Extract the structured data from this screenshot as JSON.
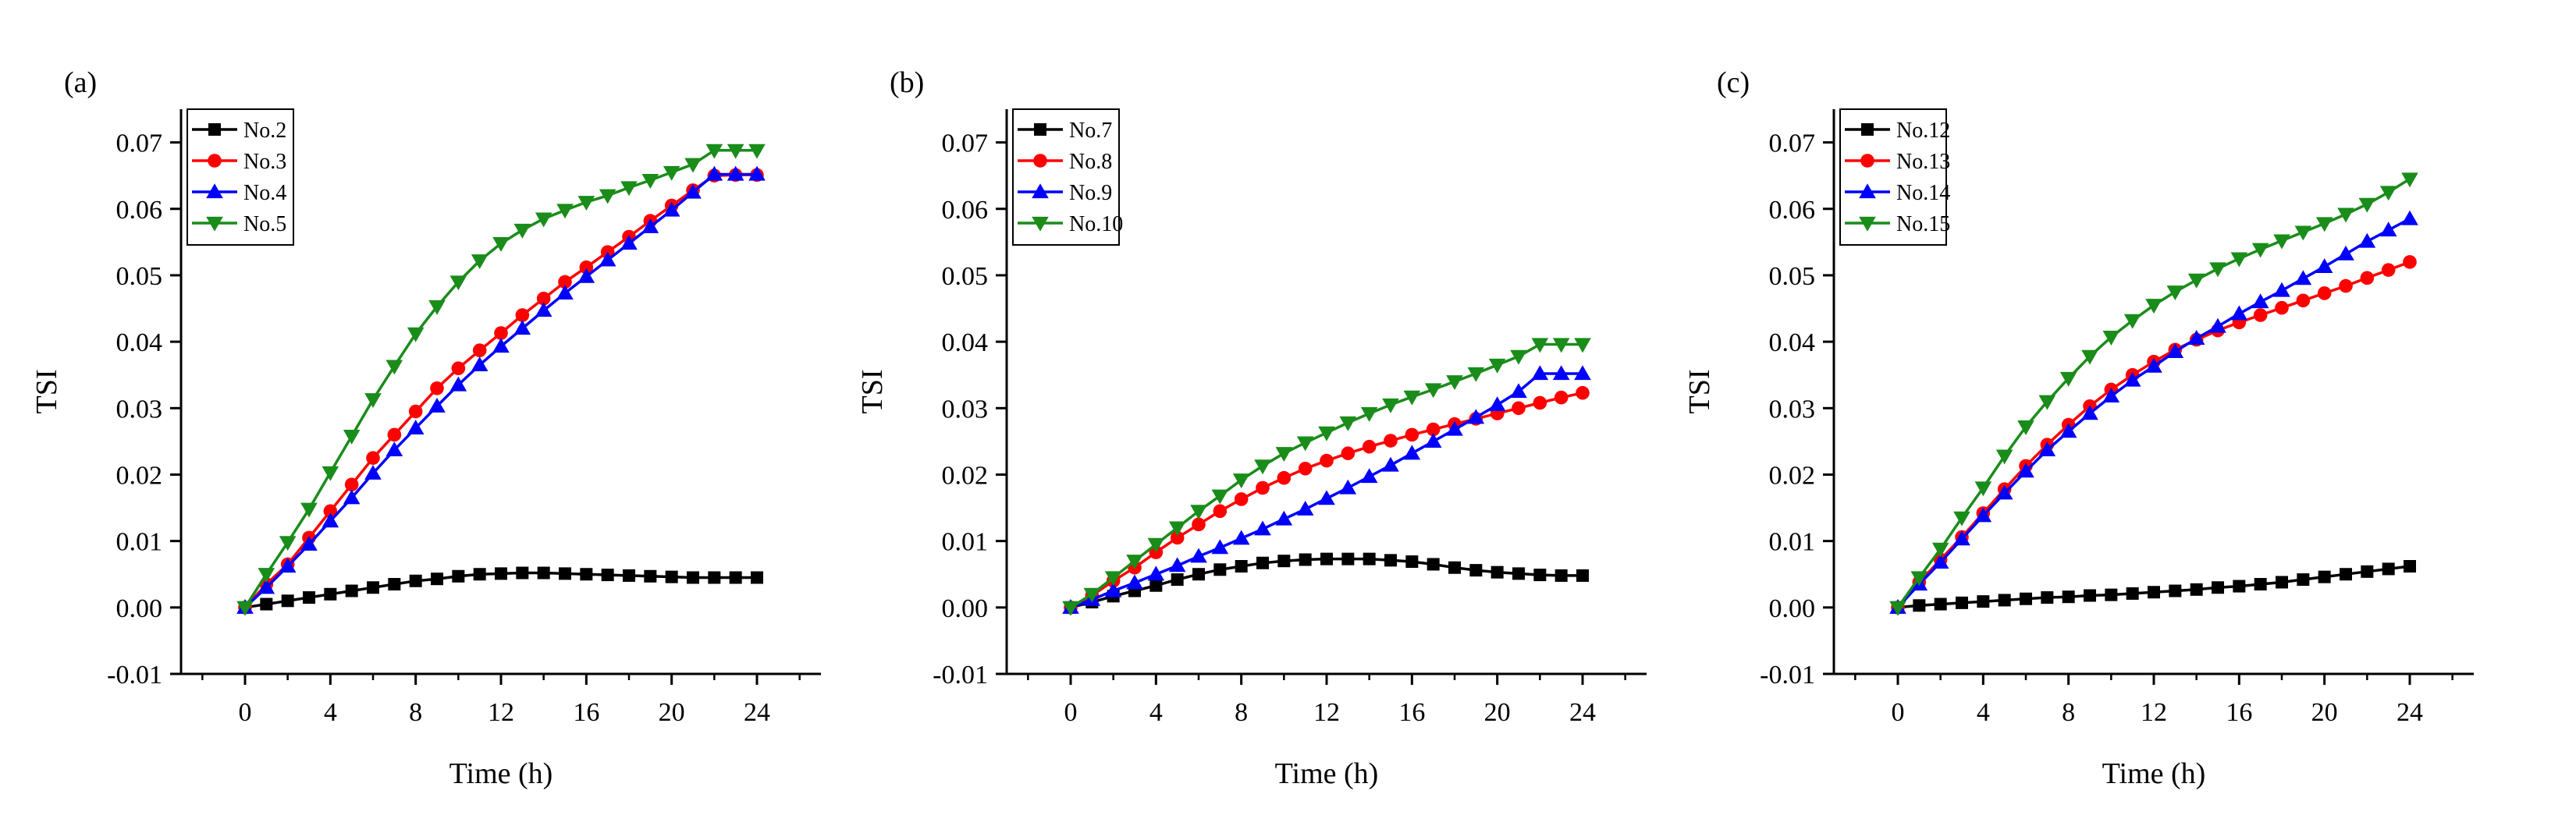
{
  "chart_data": [
    {
      "type": "line",
      "panel_label": "(a)",
      "xlabel": "Time (h)",
      "ylabel": "TSI",
      "xlim": [
        -3,
        27
      ],
      "ylim": [
        -0.01,
        0.075
      ],
      "xticks": [
        0,
        4,
        8,
        12,
        16,
        20,
        24
      ],
      "yticks": [
        -0.01,
        0.0,
        0.01,
        0.02,
        0.03,
        0.04,
        0.05,
        0.06,
        0.07
      ],
      "xtick_labels": [
        "0",
        "4",
        "8",
        "12",
        "16",
        "20",
        "24"
      ],
      "ytick_labels": [
        "-0.01",
        "0.00",
        "0.01",
        "0.02",
        "0.03",
        "0.04",
        "0.05",
        "0.06",
        "0.07"
      ],
      "legend_position": "top-left",
      "x": [
        0,
        1,
        2,
        3,
        4,
        5,
        6,
        7,
        8,
        9,
        10,
        11,
        12,
        13,
        14,
        15,
        16,
        17,
        18,
        19,
        20,
        21,
        22,
        23,
        24
      ],
      "series": [
        {
          "name": "No.2",
          "color": "#000000",
          "marker": "square",
          "values": [
            0.0,
            0.0005,
            0.001,
            0.0015,
            0.002,
            0.0025,
            0.003,
            0.0035,
            0.004,
            0.0043,
            0.0047,
            0.005,
            0.0051,
            0.0052,
            0.0052,
            0.0051,
            0.005,
            0.0049,
            0.0048,
            0.0047,
            0.0046,
            0.0045,
            0.0045,
            0.0045,
            0.0045
          ]
        },
        {
          "name": "No.3",
          "color": "#ff0000",
          "marker": "circle",
          "values": [
            0.0,
            0.0035,
            0.0065,
            0.0105,
            0.0145,
            0.0185,
            0.0225,
            0.026,
            0.0295,
            0.033,
            0.036,
            0.0387,
            0.0413,
            0.044,
            0.0465,
            0.049,
            0.0512,
            0.0535,
            0.0558,
            0.0582,
            0.0605,
            0.0628,
            0.065,
            0.0651,
            0.0651
          ]
        },
        {
          "name": "No.4",
          "color": "#0000ff",
          "marker": "triangle-up",
          "values": [
            0.0,
            0.003,
            0.0062,
            0.0095,
            0.013,
            0.0165,
            0.0202,
            0.0237,
            0.027,
            0.0303,
            0.0335,
            0.0365,
            0.0393,
            0.042,
            0.0447,
            0.0473,
            0.0498,
            0.0523,
            0.0548,
            0.0573,
            0.0598,
            0.0625,
            0.0652,
            0.0652,
            0.0652
          ]
        },
        {
          "name": "No.5",
          "color": "#1a8c1a",
          "marker": "triangle-down",
          "values": [
            0.0,
            0.005,
            0.0098,
            0.0148,
            0.0203,
            0.0258,
            0.0313,
            0.0363,
            0.0412,
            0.0453,
            0.049,
            0.0522,
            0.0548,
            0.0568,
            0.0585,
            0.0598,
            0.061,
            0.062,
            0.0632,
            0.0643,
            0.0655,
            0.0667,
            0.0688,
            0.0688,
            0.0688
          ]
        }
      ]
    },
    {
      "type": "line",
      "panel_label": "(b)",
      "xlabel": "Time (h)",
      "ylabel": "TSI",
      "xlim": [
        -3,
        27
      ],
      "ylim": [
        -0.01,
        0.075
      ],
      "xticks": [
        0,
        4,
        8,
        12,
        16,
        20,
        24
      ],
      "yticks": [
        -0.01,
        0.0,
        0.01,
        0.02,
        0.03,
        0.04,
        0.05,
        0.06,
        0.07
      ],
      "xtick_labels": [
        "0",
        "4",
        "8",
        "12",
        "16",
        "20",
        "24"
      ],
      "ytick_labels": [
        "-0.01",
        "0.00",
        "0.01",
        "0.02",
        "0.03",
        "0.04",
        "0.05",
        "0.06",
        "0.07"
      ],
      "legend_position": "top-left",
      "x": [
        0,
        1,
        2,
        3,
        4,
        5,
        6,
        7,
        8,
        9,
        10,
        11,
        12,
        13,
        14,
        15,
        16,
        17,
        18,
        19,
        20,
        21,
        22,
        23,
        24
      ],
      "series": [
        {
          "name": "No.7",
          "color": "#000000",
          "marker": "square",
          "values": [
            0.0,
            0.0008,
            0.0017,
            0.0025,
            0.0033,
            0.0042,
            0.005,
            0.0057,
            0.0062,
            0.0067,
            0.007,
            0.0072,
            0.0073,
            0.0073,
            0.0073,
            0.0071,
            0.0069,
            0.0065,
            0.006,
            0.0056,
            0.0053,
            0.0051,
            0.0049,
            0.0048,
            0.0048
          ]
        },
        {
          "name": "No.8",
          "color": "#ff0000",
          "marker": "circle",
          "values": [
            0.0,
            0.0018,
            0.004,
            0.006,
            0.0083,
            0.0105,
            0.0125,
            0.0145,
            0.0163,
            0.018,
            0.0195,
            0.0209,
            0.0221,
            0.0232,
            0.0242,
            0.0251,
            0.026,
            0.0268,
            0.0276,
            0.0284,
            0.0292,
            0.03,
            0.0308,
            0.0316,
            0.0323
          ]
        },
        {
          "name": "No.9",
          "color": "#0000ff",
          "marker": "triangle-up",
          "values": [
            0.0,
            0.0012,
            0.0025,
            0.0037,
            0.005,
            0.0063,
            0.0077,
            0.009,
            0.0104,
            0.0118,
            0.0133,
            0.0148,
            0.0164,
            0.018,
            0.0197,
            0.0214,
            0.0232,
            0.025,
            0.0268,
            0.0286,
            0.0305,
            0.0325,
            0.0352,
            0.0352,
            0.0352
          ]
        },
        {
          "name": "No.10",
          "color": "#1a8c1a",
          "marker": "triangle-down",
          "values": [
            0.0,
            0.002,
            0.0045,
            0.007,
            0.0095,
            0.012,
            0.0145,
            0.0168,
            0.0192,
            0.0213,
            0.0232,
            0.0248,
            0.0263,
            0.0278,
            0.0292,
            0.0305,
            0.0317,
            0.0328,
            0.034,
            0.0352,
            0.0365,
            0.0378,
            0.0396,
            0.0396,
            0.0396
          ]
        }
      ]
    },
    {
      "type": "line",
      "panel_label": "(c)",
      "xlabel": "Time (h)",
      "ylabel": "TSI",
      "xlim": [
        -3,
        27
      ],
      "ylim": [
        -0.01,
        0.075
      ],
      "xticks": [
        0,
        4,
        8,
        12,
        16,
        20,
        24
      ],
      "yticks": [
        -0.01,
        0.0,
        0.01,
        0.02,
        0.03,
        0.04,
        0.05,
        0.06,
        0.07
      ],
      "xtick_labels": [
        "0",
        "4",
        "8",
        "12",
        "16",
        "20",
        "24"
      ],
      "ytick_labels": [
        "-0.01",
        "0.00",
        "0.01",
        "0.02",
        "0.03",
        "0.04",
        "0.05",
        "0.06",
        "0.07"
      ],
      "legend_position": "top-left",
      "x": [
        0,
        1,
        2,
        3,
        4,
        5,
        6,
        7,
        8,
        9,
        10,
        11,
        12,
        13,
        14,
        15,
        16,
        17,
        18,
        19,
        20,
        21,
        22,
        23,
        24
      ],
      "series": [
        {
          "name": "No.12",
          "color": "#000000",
          "marker": "square",
          "values": [
            0.0,
            0.0003,
            0.0005,
            0.0007,
            0.0009,
            0.0011,
            0.0013,
            0.0015,
            0.0016,
            0.0018,
            0.0019,
            0.0021,
            0.0023,
            0.0025,
            0.0027,
            0.003,
            0.0032,
            0.0035,
            0.0038,
            0.0042,
            0.0046,
            0.005,
            0.0054,
            0.0058,
            0.0062
          ]
        },
        {
          "name": "No.13",
          "color": "#ff0000",
          "marker": "circle",
          "values": [
            0.0,
            0.0038,
            0.0072,
            0.0106,
            0.0142,
            0.0178,
            0.0213,
            0.0245,
            0.0275,
            0.0303,
            0.0328,
            0.035,
            0.037,
            0.0388,
            0.0403,
            0.0417,
            0.0429,
            0.044,
            0.0451,
            0.0462,
            0.0473,
            0.0484,
            0.0496,
            0.0508,
            0.052
          ]
        },
        {
          "name": "No.14",
          "color": "#0000ff",
          "marker": "triangle-up",
          "values": [
            0.0,
            0.0035,
            0.0068,
            0.0103,
            0.0138,
            0.0172,
            0.0205,
            0.0237,
            0.0265,
            0.0292,
            0.0318,
            0.0342,
            0.0363,
            0.0385,
            0.0405,
            0.0423,
            0.0442,
            0.046,
            0.0477,
            0.0495,
            0.0513,
            0.0532,
            0.0551,
            0.0568,
            0.0585
          ]
        },
        {
          "name": "No.15",
          "color": "#1a8c1a",
          "marker": "triangle-down",
          "values": [
            0.0,
            0.0045,
            0.0088,
            0.0135,
            0.018,
            0.0228,
            0.0272,
            0.031,
            0.0345,
            0.0378,
            0.0407,
            0.0432,
            0.0455,
            0.0475,
            0.0493,
            0.051,
            0.0525,
            0.0539,
            0.0552,
            0.0565,
            0.0578,
            0.0592,
            0.0607,
            0.0625,
            0.0645
          ]
        }
      ]
    }
  ]
}
